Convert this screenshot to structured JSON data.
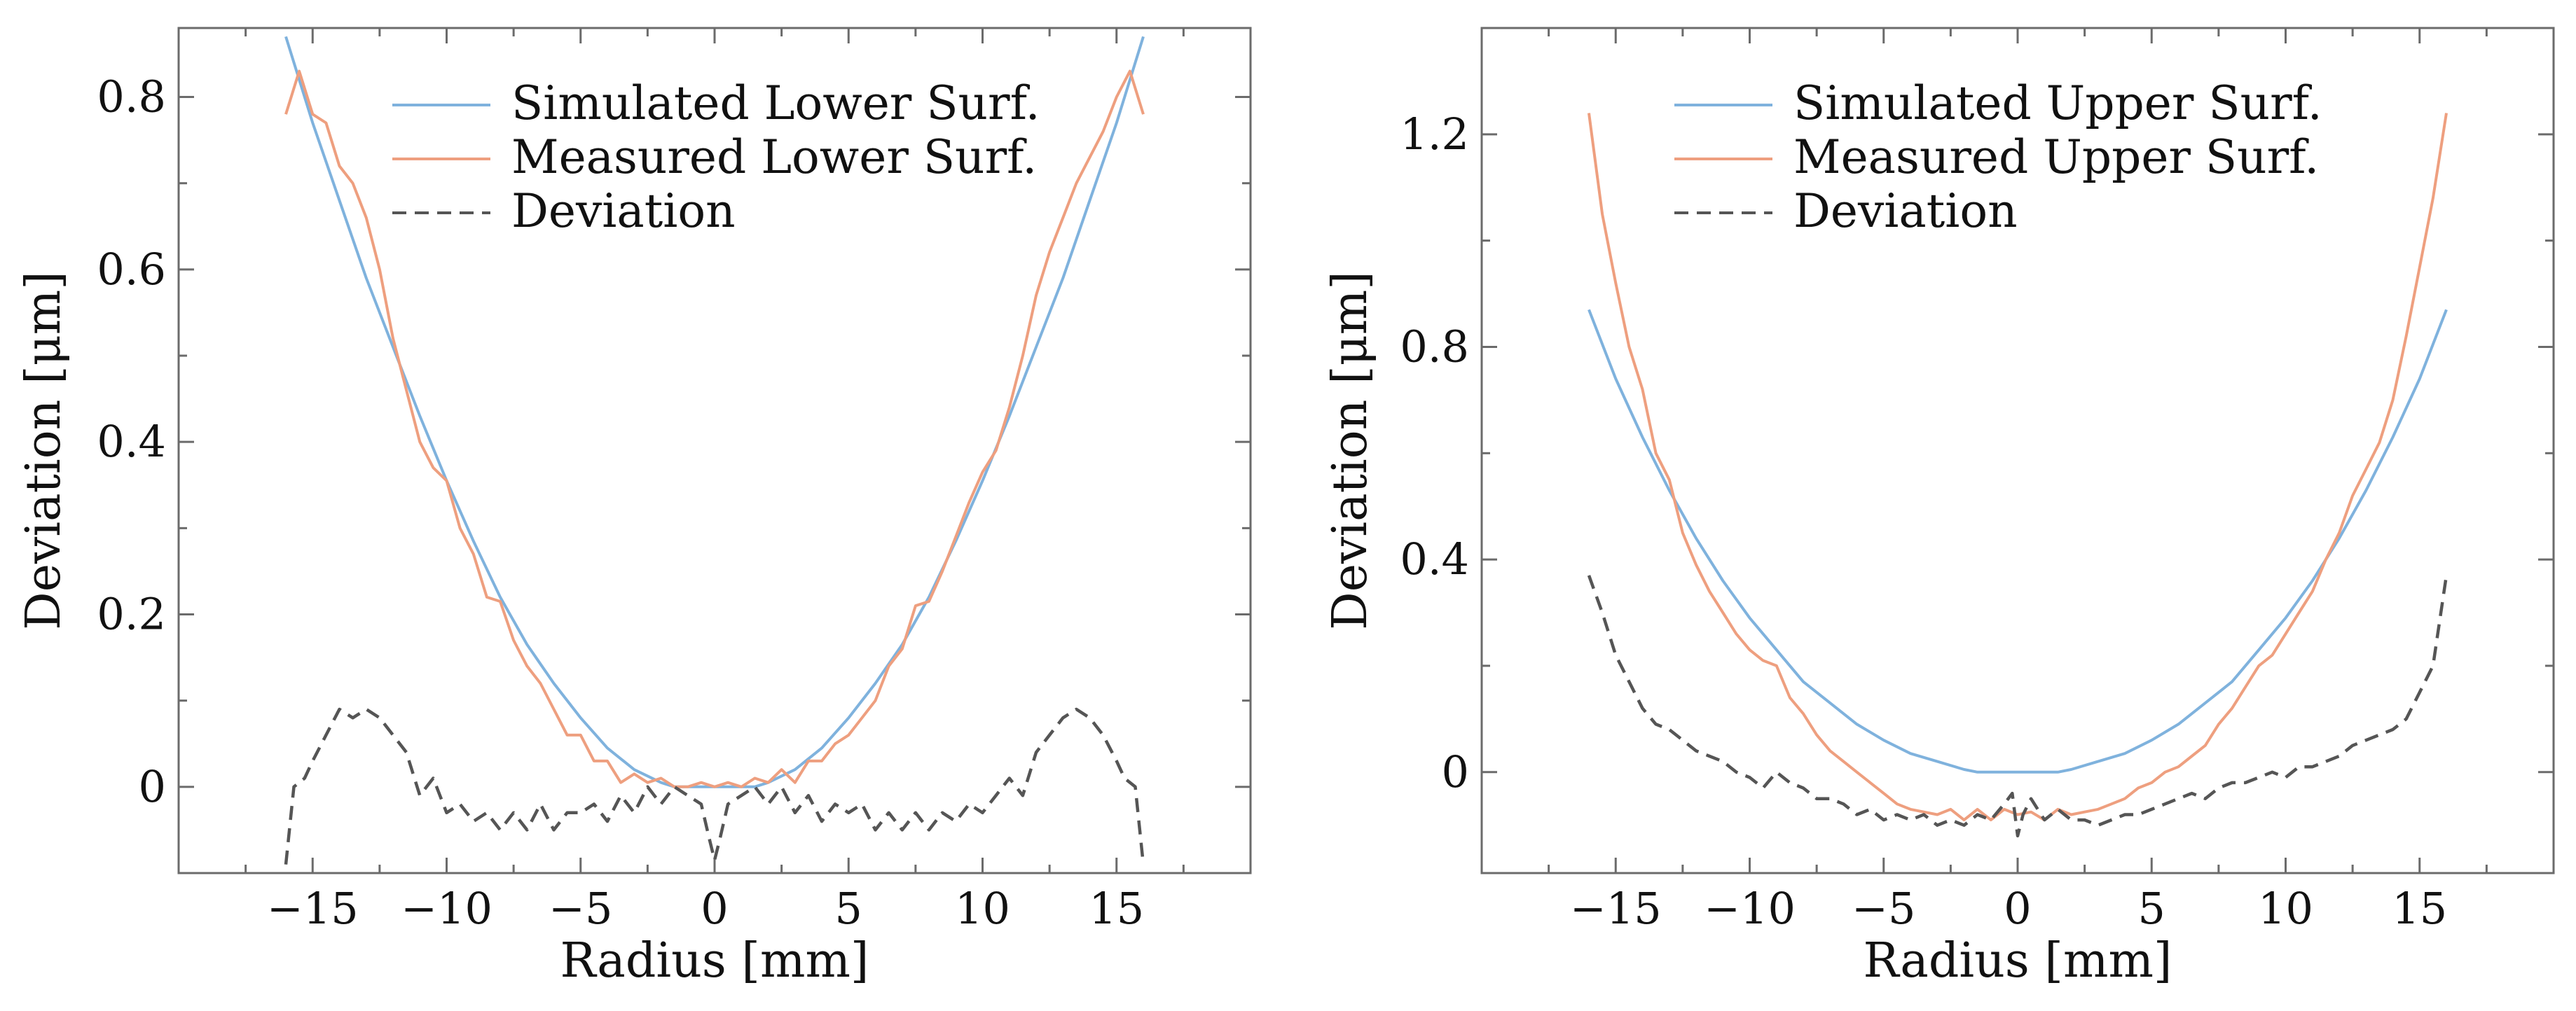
{
  "chart_data": [
    {
      "type": "line",
      "xlabel": "Radius [mm]",
      "ylabel": "Deviation [μm]",
      "xlim": [
        -20,
        20
      ],
      "ylim": [
        -0.1,
        0.88
      ],
      "xticks": [
        -15,
        -10,
        -5,
        0,
        5,
        10,
        15
      ],
      "xtick_labels": [
        "−15",
        "−10",
        "−5",
        "0",
        "5",
        "10",
        "15"
      ],
      "yticks": [
        0,
        0.2,
        0.4,
        0.6,
        0.8
      ],
      "ytick_labels": [
        "0",
        "0.2",
        "0.4",
        "0.6",
        "0.8"
      ],
      "grid": false,
      "legend_position": "top-center",
      "series": [
        {
          "name": "Simulated Lower Surf.",
          "color": "#7fb2dd",
          "style": "solid",
          "x": [
            -16,
            -15,
            -14,
            -13,
            -12,
            -11,
            -10,
            -9,
            -8,
            -7,
            -6,
            -5,
            -4,
            -3,
            -2,
            -1.5,
            0,
            1.5,
            2,
            3,
            4,
            5,
            6,
            7,
            8,
            9,
            10,
            11,
            12,
            13,
            14,
            15,
            16
          ],
          "y": [
            0.87,
            0.77,
            0.68,
            0.59,
            0.51,
            0.43,
            0.355,
            0.285,
            0.22,
            0.165,
            0.12,
            0.08,
            0.045,
            0.02,
            0.005,
            0,
            0,
            0,
            0.005,
            0.02,
            0.045,
            0.08,
            0.12,
            0.165,
            0.22,
            0.285,
            0.355,
            0.43,
            0.51,
            0.59,
            0.68,
            0.77,
            0.87
          ]
        },
        {
          "name": "Measured Lower Surf.",
          "color": "#ee9f7f",
          "style": "solid",
          "x": [
            -16,
            -15.5,
            -15,
            -14.5,
            -14,
            -13.5,
            -13,
            -12.5,
            -12,
            -11.5,
            -11,
            -10.5,
            -10,
            -9.5,
            -9,
            -8.5,
            -8,
            -7.5,
            -7,
            -6.5,
            -6,
            -5.5,
            -5,
            -4.5,
            -4,
            -3.5,
            -3,
            -2.5,
            -2,
            -1.5,
            -1,
            -0.5,
            0,
            0.5,
            1,
            1.5,
            2,
            2.5,
            3,
            3.5,
            4,
            4.5,
            5,
            5.5,
            6,
            6.5,
            7,
            7.5,
            8,
            8.5,
            9,
            9.5,
            10,
            10.5,
            11,
            11.5,
            12,
            12.5,
            13,
            13.5,
            14,
            14.5,
            15,
            15.5,
            16
          ],
          "y": [
            0.78,
            0.83,
            0.78,
            0.77,
            0.72,
            0.7,
            0.66,
            0.6,
            0.52,
            0.46,
            0.4,
            0.37,
            0.355,
            0.3,
            0.27,
            0.22,
            0.215,
            0.17,
            0.14,
            0.12,
            0.09,
            0.06,
            0.06,
            0.03,
            0.03,
            0.005,
            0.015,
            0.005,
            0.01,
            0,
            0,
            0.005,
            0,
            0.005,
            0,
            0.01,
            0.005,
            0.02,
            0.005,
            0.03,
            0.03,
            0.05,
            0.06,
            0.08,
            0.1,
            0.14,
            0.16,
            0.21,
            0.215,
            0.25,
            0.29,
            0.33,
            0.365,
            0.39,
            0.44,
            0.5,
            0.57,
            0.62,
            0.66,
            0.7,
            0.73,
            0.76,
            0.8,
            0.83,
            0.78
          ]
        },
        {
          "name": "Deviation",
          "color": "#555555",
          "style": "dashed",
          "x": [
            -16,
            -15.7,
            -15.3,
            -15,
            -14.5,
            -14,
            -13.5,
            -13,
            -12.5,
            -12,
            -11.5,
            -11,
            -10.5,
            -10,
            -9.5,
            -9,
            -8.5,
            -8,
            -7.5,
            -7,
            -6.5,
            -6,
            -5.5,
            -5,
            -4.5,
            -4,
            -3.5,
            -3,
            -2.5,
            -2,
            -1.5,
            -1,
            -0.5,
            -0.2,
            0,
            0.2,
            0.5,
            1,
            1.5,
            2,
            2.5,
            3,
            3.5,
            4,
            4.5,
            5,
            5.5,
            6,
            6.5,
            7,
            7.5,
            8,
            8.5,
            9,
            9.5,
            10,
            10.5,
            11,
            11.5,
            12,
            12.5,
            13,
            13.5,
            14,
            14.5,
            15,
            15.3,
            15.7,
            16
          ],
          "y": [
            -0.09,
            0,
            0.01,
            0.03,
            0.06,
            0.09,
            0.08,
            0.09,
            0.08,
            0.06,
            0.04,
            -0.01,
            0.01,
            -0.03,
            -0.02,
            -0.04,
            -0.03,
            -0.05,
            -0.03,
            -0.05,
            -0.02,
            -0.05,
            -0.03,
            -0.03,
            -0.02,
            -0.04,
            -0.01,
            -0.03,
            0,
            -0.02,
            0,
            -0.01,
            -0.02,
            -0.06,
            -0.085,
            -0.06,
            -0.02,
            -0.01,
            0,
            -0.02,
            0,
            -0.03,
            -0.01,
            -0.04,
            -0.02,
            -0.03,
            -0.02,
            -0.05,
            -0.03,
            -0.05,
            -0.03,
            -0.05,
            -0.03,
            -0.04,
            -0.02,
            -0.03,
            -0.01,
            0.01,
            -0.01,
            0.04,
            0.06,
            0.08,
            0.09,
            0.08,
            0.06,
            0.03,
            0.01,
            0,
            -0.09
          ]
        }
      ]
    },
    {
      "type": "line",
      "xlabel": "Radius [mm]",
      "ylabel": "Deviation [μm]",
      "xlim": [
        -20,
        20
      ],
      "ylim": [
        -0.19,
        1.4
      ],
      "xticks": [
        -15,
        -10,
        -5,
        0,
        5,
        10,
        15
      ],
      "xtick_labels": [
        "−15",
        "−10",
        "−5",
        "0",
        "5",
        "10",
        "15"
      ],
      "yticks": [
        0,
        0.4,
        0.8,
        1.2
      ],
      "ytick_labels": [
        "0",
        "0.4",
        "0.8",
        "1.2"
      ],
      "grid": false,
      "legend_position": "top-center",
      "series": [
        {
          "name": "Simulated Upper Surf.",
          "color": "#7fb2dd",
          "style": "solid",
          "x": [
            -16,
            -15,
            -14,
            -13,
            -12,
            -11,
            -10,
            -9,
            -8,
            -7,
            -6,
            -5,
            -4,
            -3,
            -2,
            -1.5,
            0,
            1.5,
            2,
            3,
            4,
            5,
            6,
            7,
            8,
            9,
            10,
            11,
            12,
            13,
            14,
            15,
            16
          ],
          "y": [
            0.87,
            0.74,
            0.63,
            0.53,
            0.44,
            0.36,
            0.29,
            0.23,
            0.17,
            0.13,
            0.09,
            0.06,
            0.035,
            0.02,
            0.005,
            0,
            0,
            0,
            0.005,
            0.02,
            0.035,
            0.06,
            0.09,
            0.13,
            0.17,
            0.23,
            0.29,
            0.36,
            0.44,
            0.53,
            0.63,
            0.74,
            0.87
          ]
        },
        {
          "name": "Measured Upper Surf.",
          "color": "#ee9f7f",
          "style": "solid",
          "x": [
            -16,
            -15.5,
            -15,
            -14.5,
            -14,
            -13.5,
            -13,
            -12.5,
            -12,
            -11.5,
            -11,
            -10.5,
            -10,
            -9.5,
            -9,
            -8.5,
            -8,
            -7.5,
            -7,
            -6.5,
            -6,
            -5.5,
            -5,
            -4.5,
            -4,
            -3.5,
            -3,
            -2.5,
            -2,
            -1.5,
            -1,
            -0.5,
            0,
            0.5,
            1,
            1.5,
            2,
            2.5,
            3,
            3.5,
            4,
            4.5,
            5,
            5.5,
            6,
            6.5,
            7,
            7.5,
            8,
            8.5,
            9,
            9.5,
            10,
            10.5,
            11,
            11.5,
            12,
            12.5,
            13,
            13.5,
            14,
            14.5,
            15,
            15.5,
            16
          ],
          "y": [
            1.24,
            1.05,
            0.92,
            0.8,
            0.72,
            0.6,
            0.55,
            0.45,
            0.39,
            0.34,
            0.3,
            0.26,
            0.23,
            0.21,
            0.2,
            0.14,
            0.11,
            0.07,
            0.04,
            0.02,
            0,
            -0.02,
            -0.04,
            -0.06,
            -0.07,
            -0.075,
            -0.08,
            -0.07,
            -0.09,
            -0.07,
            -0.09,
            -0.07,
            -0.08,
            -0.075,
            -0.09,
            -0.07,
            -0.08,
            -0.075,
            -0.07,
            -0.06,
            -0.05,
            -0.03,
            -0.02,
            0,
            0.01,
            0.03,
            0.05,
            0.09,
            0.12,
            0.16,
            0.2,
            0.22,
            0.26,
            0.3,
            0.34,
            0.4,
            0.45,
            0.52,
            0.57,
            0.62,
            0.7,
            0.82,
            0.95,
            1.08,
            1.24
          ]
        },
        {
          "name": "Deviation",
          "color": "#555555",
          "style": "dashed",
          "x": [
            -16,
            -15.5,
            -15,
            -14.5,
            -14,
            -13.5,
            -13,
            -12.5,
            -12,
            -11.5,
            -11,
            -10.5,
            -10,
            -9.5,
            -9,
            -8.5,
            -8,
            -7.5,
            -7,
            -6.5,
            -6,
            -5.5,
            -5,
            -4.5,
            -4,
            -3.5,
            -3,
            -2.5,
            -2,
            -1.5,
            -1,
            -0.5,
            -0.2,
            0,
            0.2,
            0.5,
            1,
            1.5,
            2,
            2.5,
            3,
            3.5,
            4,
            4.5,
            5,
            5.5,
            6,
            6.5,
            7,
            7.5,
            8,
            8.5,
            9,
            9.5,
            10,
            10.5,
            11,
            11.5,
            12,
            12.5,
            13,
            13.5,
            14,
            14.5,
            15,
            15.5,
            16
          ],
          "y": [
            0.37,
            0.3,
            0.22,
            0.17,
            0.12,
            0.09,
            0.08,
            0.06,
            0.04,
            0.03,
            0.02,
            0,
            -0.01,
            -0.03,
            0,
            -0.02,
            -0.03,
            -0.05,
            -0.05,
            -0.06,
            -0.08,
            -0.07,
            -0.09,
            -0.08,
            -0.09,
            -0.08,
            -0.1,
            -0.09,
            -0.1,
            -0.08,
            -0.09,
            -0.06,
            -0.04,
            -0.12,
            -0.08,
            -0.05,
            -0.09,
            -0.07,
            -0.09,
            -0.09,
            -0.1,
            -0.09,
            -0.08,
            -0.08,
            -0.07,
            -0.06,
            -0.05,
            -0.04,
            -0.05,
            -0.03,
            -0.02,
            -0.02,
            -0.01,
            0,
            -0.01,
            0.01,
            0.01,
            0.02,
            0.03,
            0.05,
            0.06,
            0.07,
            0.08,
            0.1,
            0.15,
            0.2,
            0.37
          ]
        }
      ]
    }
  ]
}
